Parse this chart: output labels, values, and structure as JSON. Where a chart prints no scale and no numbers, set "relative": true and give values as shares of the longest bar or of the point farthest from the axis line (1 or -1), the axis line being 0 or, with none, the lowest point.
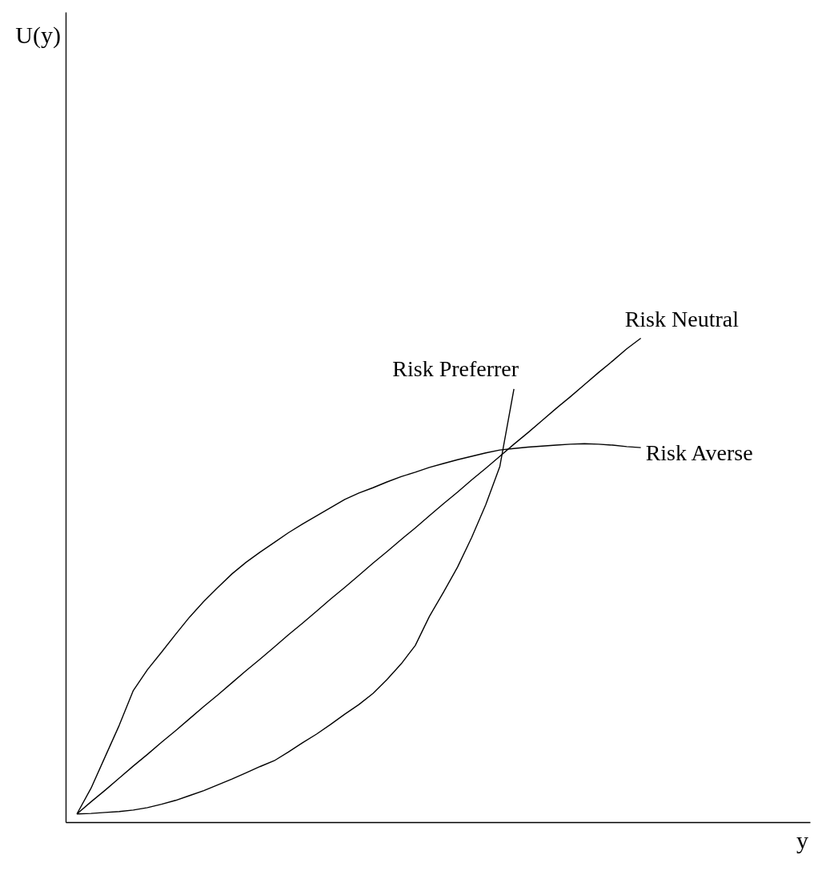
{
  "chart_data": {
    "type": "line",
    "relative": true,
    "annotations": [
      "U(y)",
      "y"
    ],
    "grid": false,
    "categories": [
      null,
      null,
      null,
      null,
      null,
      null,
      null,
      null,
      null,
      null,
      null,
      null,
      null,
      null,
      null,
      null,
      null,
      null,
      null,
      null,
      null,
      null,
      null,
      null,
      null,
      null,
      null,
      null,
      null,
      null,
      null,
      null,
      null,
      null,
      null,
      null,
      null,
      null,
      null,
      null,
      null
    ],
    "series": [
      {
        "name": "Risk Averse",
        "color": "#000000",
        "values": [
          0.017,
          0.07,
          0.135,
          0.2,
          0.272,
          0.315,
          0.351,
          0.388,
          0.424,
          0.456,
          0.485,
          0.513,
          0.537,
          0.558,
          0.578,
          0.598,
          0.616,
          0.633,
          0.65,
          0.667,
          0.68,
          0.691,
          0.703,
          0.714,
          0.723,
          0.733,
          0.741,
          0.749,
          0.756,
          0.763,
          0.769,
          0.772,
          0.775,
          0.777,
          0.779,
          0.781,
          0.782,
          0.781,
          0.779,
          0.776,
          0.774
        ]
      },
      {
        "name": "Risk Neutral",
        "color": "#000000",
        "values": [
          0.017,
          0.042,
          0.066,
          0.091,
          0.116,
          0.14,
          0.165,
          0.189,
          0.214,
          0.239,
          0.263,
          0.288,
          0.313,
          0.337,
          0.362,
          0.387,
          0.411,
          0.436,
          0.461,
          0.485,
          0.51,
          0.535,
          0.559,
          0.584,
          0.608,
          0.633,
          0.658,
          0.682,
          0.707,
          0.731,
          0.756,
          0.781,
          0.805,
          0.83,
          0.855,
          0.879,
          0.904,
          0.929,
          0.953,
          0.978,
          1.0
        ]
      },
      {
        "name": "Risk Preferrer",
        "color": "#000000",
        "values": [
          0.017,
          0.018,
          0.02,
          0.022,
          0.025,
          0.03,
          0.037,
          0.045,
          0.055,
          0.065,
          0.077,
          0.089,
          0.102,
          0.115,
          0.127,
          0.145,
          0.164,
          0.182,
          0.202,
          0.223,
          0.243,
          0.266,
          0.295,
          0.327,
          0.365,
          0.425,
          0.475,
          0.527,
          0.588,
          0.656,
          0.735,
          0.895,
          null,
          null,
          null,
          null,
          null,
          null,
          null,
          null,
          null
        ]
      }
    ]
  }
}
